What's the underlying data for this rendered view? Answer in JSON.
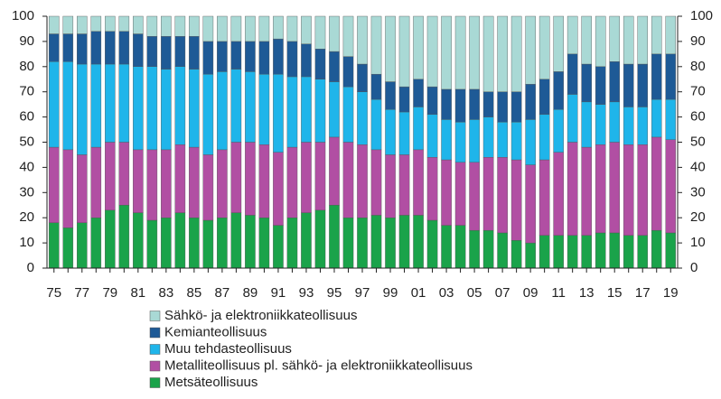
{
  "chart_data": {
    "type": "stacked_bar",
    "categories": [
      "75",
      null,
      "77",
      null,
      "79",
      null,
      "81",
      null,
      "83",
      null,
      "85",
      null,
      "87",
      null,
      "89",
      null,
      "91",
      null,
      "93",
      null,
      "95",
      null,
      "97",
      null,
      "99",
      null,
      "01",
      null,
      "03",
      null,
      "05",
      null,
      "07",
      null,
      "09",
      null,
      "11",
      null,
      "13",
      null,
      "15",
      null,
      "17",
      null,
      "19"
    ],
    "series": [
      {
        "name": "Metsäteollisuus",
        "color": "#1aa34a",
        "values": [
          18,
          16,
          18,
          20,
          23,
          25,
          22,
          19,
          20,
          22,
          20,
          19,
          20,
          22,
          21,
          20,
          17,
          20,
          22,
          23,
          25,
          20,
          20,
          21,
          20,
          21,
          21,
          19,
          17,
          17,
          15,
          15,
          14,
          11,
          10,
          13,
          13,
          13,
          13,
          14,
          14,
          13,
          13,
          15,
          14
        ]
      },
      {
        "name": "Metalliteollisuus pl. sähkö- ja elektroniikkateollisuus",
        "color": "#b14fa3",
        "values": [
          30,
          31,
          27,
          28,
          27,
          25,
          25,
          28,
          27,
          27,
          28,
          26,
          27,
          28,
          29,
          29,
          29,
          28,
          28,
          27,
          27,
          30,
          29,
          26,
          25,
          24,
          26,
          25,
          26,
          25,
          27,
          29,
          30,
          32,
          31,
          30,
          33,
          37,
          35,
          35,
          36,
          36,
          36,
          37,
          37
        ]
      },
      {
        "name": "Muu tehdasteollisuus",
        "color": "#1fb5ea",
        "values": [
          34,
          35,
          36,
          33,
          31,
          31,
          33,
          33,
          32,
          31,
          31,
          32,
          31,
          29,
          28,
          28,
          31,
          28,
          26,
          25,
          22,
          22,
          21,
          20,
          18,
          17,
          17,
          17,
          16,
          16,
          17,
          16,
          14,
          15,
          18,
          18,
          17,
          19,
          18,
          16,
          16,
          15,
          15,
          15,
          16
        ]
      },
      {
        "name": "Kemianteollisuus",
        "color": "#1e5a96",
        "values": [
          11,
          11,
          12,
          13,
          13,
          13,
          13,
          12,
          13,
          12,
          13,
          13,
          12,
          11,
          12,
          13,
          14,
          14,
          13,
          12,
          12,
          12,
          11,
          10,
          11,
          10,
          11,
          11,
          12,
          13,
          12,
          10,
          12,
          12,
          14,
          14,
          15,
          16,
          15,
          15,
          16,
          17,
          17,
          18,
          18
        ]
      },
      {
        "name": "Sähkö- ja elektroniikkateollisuus",
        "color": "#a9d9d5",
        "values": [
          7,
          7,
          7,
          6,
          6,
          6,
          7,
          8,
          8,
          8,
          8,
          10,
          10,
          10,
          10,
          10,
          9,
          10,
          11,
          13,
          14,
          16,
          19,
          23,
          26,
          28,
          25,
          28,
          29,
          29,
          29,
          30,
          30,
          30,
          27,
          25,
          22,
          15,
          19,
          20,
          18,
          19,
          19,
          15,
          15
        ]
      }
    ],
    "ylim": [
      0,
      100
    ],
    "yticks": [
      0,
      10,
      20,
      30,
      40,
      50,
      60,
      70,
      80,
      90,
      100
    ],
    "y2lim": [
      0,
      100
    ],
    "y2ticks": [
      0,
      10,
      20,
      30,
      40,
      50,
      60,
      70,
      80,
      90,
      100
    ]
  }
}
